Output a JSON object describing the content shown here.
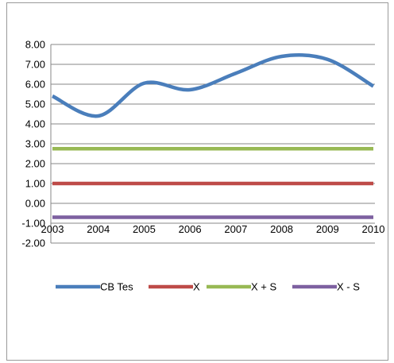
{
  "chart_data": {
    "type": "line",
    "title": "",
    "xlabel": "",
    "ylabel": "",
    "categories": [
      "2003",
      "2004",
      "2005",
      "2006",
      "2007",
      "2008",
      "2009",
      "2010"
    ],
    "ylim": [
      -2,
      8
    ],
    "y_ticks": [
      "8.00",
      "7.00",
      "6.00",
      "5.00",
      "4.00",
      "3.00",
      "2.00",
      "1.00",
      "0.00",
      "-1.00",
      "-2.00"
    ],
    "grid": true,
    "smooth": true,
    "legend": {
      "position": "bottom"
    },
    "series": [
      {
        "name": "CB Tes",
        "color": "#4a7ebb",
        "values": [
          5.4,
          4.4,
          6.05,
          5.72,
          6.55,
          7.4,
          7.25,
          5.9
        ]
      },
      {
        "name": "X",
        "color": "#be4b48",
        "values": [
          1.0,
          1.0,
          1.0,
          1.0,
          1.0,
          1.0,
          1.0,
          1.0
        ]
      },
      {
        "name": "X + S",
        "color": "#98b954",
        "values": [
          2.75,
          2.75,
          2.75,
          2.75,
          2.75,
          2.75,
          2.75,
          2.75
        ]
      },
      {
        "name": "X - S",
        "color": "#7d60a0",
        "values": [
          -0.7,
          -0.7,
          -0.7,
          -0.7,
          -0.7,
          -0.7,
          -0.7,
          -0.7
        ]
      }
    ]
  }
}
